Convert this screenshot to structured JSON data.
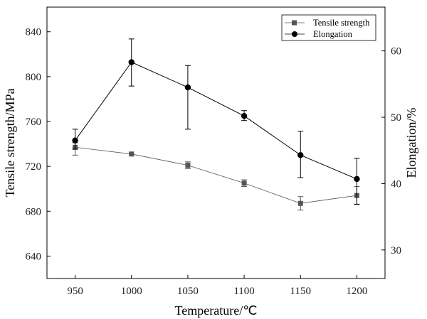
{
  "chart_data": {
    "type": "line",
    "title": "",
    "xlabel": "Temperature/℃",
    "ylabel_left": "Tensile strength/MPa",
    "ylabel_right": "Elongation/%",
    "x": [
      950,
      1000,
      1050,
      1100,
      1150,
      1200
    ],
    "x_ticks": [
      "950",
      "1000",
      "1050",
      "1100",
      "1150",
      "1200"
    ],
    "y_left_ticks": [
      "640",
      "680",
      "720",
      "760",
      "800",
      "840"
    ],
    "y_right_ticks": [
      "30",
      "40",
      "50",
      "60"
    ],
    "xlim": [
      925,
      1225
    ],
    "ylim_left": [
      620,
      862
    ],
    "ylim_right": [
      25.7,
      66.6
    ],
    "grid": false,
    "legend_position": "top-right",
    "series": [
      {
        "name": "Tensile strength",
        "axis": "left",
        "marker": "square",
        "color": "#555555",
        "values": [
          737,
          731,
          721,
          705,
          687,
          694
        ],
        "error_low": [
          730,
          731,
          718,
          702,
          681,
          686
        ],
        "error_high": [
          741,
          731,
          724,
          708,
          693,
          702
        ]
      },
      {
        "name": "Elongation",
        "axis": "right",
        "marker": "circle",
        "color": "#000000",
        "values": [
          46.5,
          58.3,
          54.5,
          50.2,
          44.3,
          40.7
        ],
        "error_low": [
          45.2,
          54.7,
          48.2,
          49.5,
          40.9,
          36.9
        ],
        "error_high": [
          48.2,
          61.8,
          57.8,
          51.0,
          47.9,
          43.8
        ]
      }
    ]
  }
}
